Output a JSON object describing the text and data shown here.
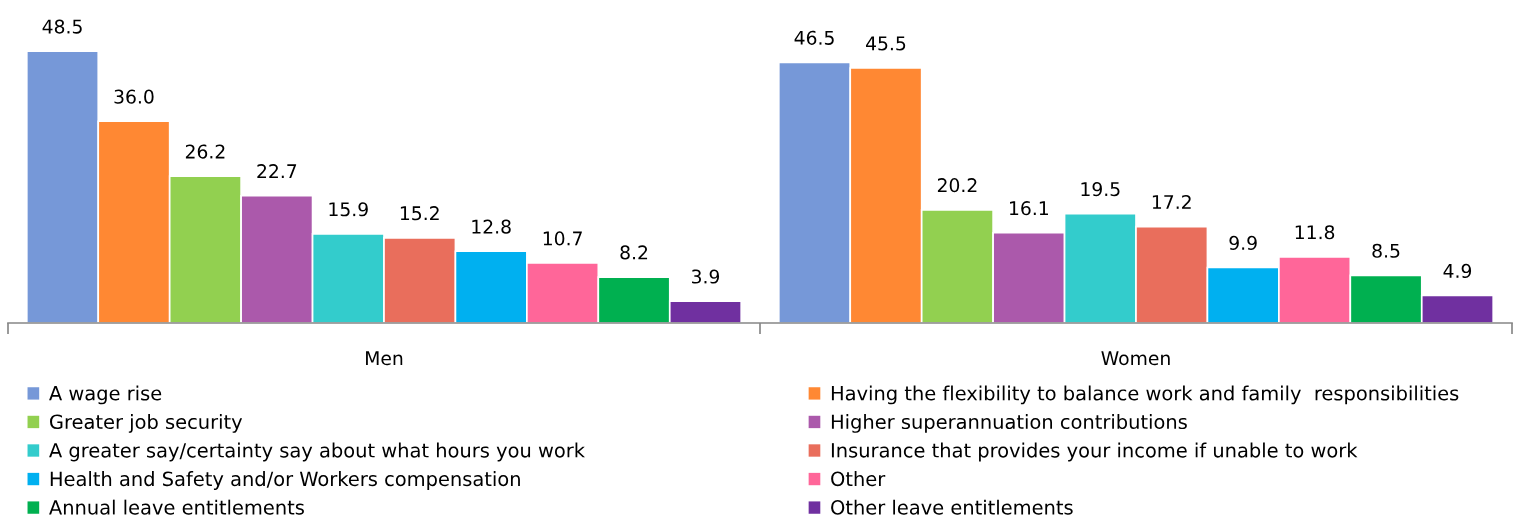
{
  "chart_data": {
    "type": "bar",
    "categories": [
      "Men",
      "Women"
    ],
    "series": [
      {
        "name": "A wage rise",
        "color": "#7698d8",
        "values": [
          48.5,
          46.5
        ],
        "value_labels": [
          "48.5",
          "46.5"
        ]
      },
      {
        "name": "Having the flexibility to balance work and family  responsibilities",
        "color": "#ff8833",
        "values": [
          36.0,
          45.5
        ],
        "value_labels": [
          "36.0",
          "45.5"
        ]
      },
      {
        "name": "Greater job security",
        "color": "#92d050",
        "values": [
          26.2,
          20.2
        ],
        "value_labels": [
          "26.2",
          "20.2"
        ]
      },
      {
        "name": "Higher superannuation contributions",
        "color": "#ab59ab",
        "values": [
          22.7,
          16.1
        ],
        "value_labels": [
          "22.7",
          "16.1"
        ]
      },
      {
        "name": "A greater say/certainty say about what hours you work",
        "color": "#33cccc",
        "values": [
          15.9,
          19.5
        ],
        "value_labels": [
          "15.9",
          "19.5"
        ]
      },
      {
        "name": "Insurance that provides your income if unable to work",
        "color": "#e96e5c",
        "values": [
          15.2,
          17.2
        ],
        "value_labels": [
          "15.2",
          "17.2"
        ]
      },
      {
        "name": "Health and Safety and/or Workers compensation",
        "color": "#00b0f0",
        "values": [
          12.8,
          9.9
        ],
        "value_labels": [
          "12.8",
          "9.9"
        ]
      },
      {
        "name": "Other",
        "color": "#ff6699",
        "values": [
          10.7,
          11.8
        ],
        "value_labels": [
          "10.7",
          "11.8"
        ]
      },
      {
        "name": "Annual leave entitlements",
        "color": "#00b050",
        "values": [
          8.2,
          8.5
        ],
        "value_labels": [
          "8.2",
          "8.5"
        ]
      },
      {
        "name": "Other leave entitlements",
        "color": "#7030a0",
        "values": [
          3.9,
          4.9
        ],
        "value_labels": [
          "3.9",
          "4.9"
        ]
      }
    ],
    "legend": "bottom",
    "tick_labels": "x",
    "grid": false
  }
}
